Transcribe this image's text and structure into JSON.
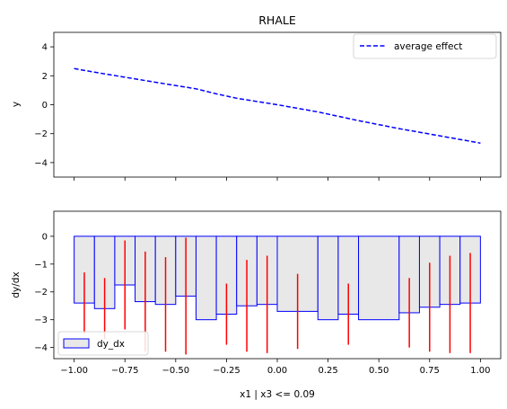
{
  "chart_data": [
    {
      "type": "line",
      "title": "RHALE",
      "xlabel": "",
      "ylabel": "y",
      "xlim": [
        -1.1,
        1.1
      ],
      "ylim": [
        -5,
        5
      ],
      "xticks": [
        -1.0,
        -0.75,
        -0.5,
        -0.25,
        0.0,
        0.25,
        0.5,
        0.75,
        1.0
      ],
      "yticks": [
        -4,
        -2,
        0,
        2,
        4
      ],
      "ytick_labels": [
        "−4",
        "−2",
        "0",
        "2",
        "4"
      ],
      "grid": false,
      "legend": {
        "position": "upper-right",
        "entries": [
          "average effect"
        ]
      },
      "series": [
        {
          "name": "average effect",
          "color": "#0000ff",
          "style": "dashed",
          "x": [
            -1.0,
            -0.9,
            -0.75,
            -0.6,
            -0.4,
            -0.3,
            -0.2,
            0.0,
            0.2,
            0.4,
            0.6,
            0.8,
            1.0
          ],
          "y": [
            2.5,
            2.25,
            1.9,
            1.55,
            1.1,
            0.75,
            0.45,
            0.0,
            -0.5,
            -1.1,
            -1.65,
            -2.15,
            -2.65
          ]
        }
      ]
    },
    {
      "type": "bar",
      "title": "",
      "xlabel": "x1 | x3 <= 0.09",
      "ylabel": "dy/dx",
      "xlim": [
        -1.1,
        1.1
      ],
      "ylim": [
        -4.4,
        0.9
      ],
      "xticks": [
        -1.0,
        -0.75,
        -0.5,
        -0.25,
        0.0,
        0.25,
        0.5,
        0.75,
        1.0
      ],
      "xtick_labels": [
        "−1.00",
        "−0.75",
        "−0.50",
        "−0.25",
        "0.00",
        "0.25",
        "0.50",
        "0.75",
        "1.00"
      ],
      "yticks": [
        0,
        -1,
        -2,
        -3,
        -4
      ],
      "ytick_labels": [
        "0",
        "−1",
        "−2",
        "−3",
        "−4"
      ],
      "grid": false,
      "legend": {
        "position": "lower-left",
        "entries": [
          "dy_dx"
        ]
      },
      "bar_fill": "#e8e8e8",
      "bar_edge": "#0000ff",
      "error_color": "#ff0000",
      "bins": [
        {
          "x0": -1.0,
          "x1": -0.9,
          "value": -2.4,
          "std": 1.1
        },
        {
          "x0": -0.9,
          "x1": -0.8,
          "value": -2.6,
          "std": 1.1
        },
        {
          "x0": -0.8,
          "x1": -0.7,
          "value": -1.75,
          "std": 1.6
        },
        {
          "x0": -0.7,
          "x1": -0.6,
          "value": -2.35,
          "std": 1.8
        },
        {
          "x0": -0.6,
          "x1": -0.5,
          "value": -2.45,
          "std": 1.7
        },
        {
          "x0": -0.5,
          "x1": -0.4,
          "value": -2.15,
          "std": 2.1
        },
        {
          "x0": -0.4,
          "x1": -0.3,
          "value": -3.0,
          "std": 0.0
        },
        {
          "x0": -0.3,
          "x1": -0.2,
          "value": -2.8,
          "std": 1.1
        },
        {
          "x0": -0.2,
          "x1": -0.1,
          "value": -2.5,
          "std": 1.65
        },
        {
          "x0": -0.1,
          "x1": 0.0,
          "value": -2.45,
          "std": 1.75
        },
        {
          "x0": 0.0,
          "x1": 0.2,
          "value": -2.7,
          "std": 1.35
        },
        {
          "x0": 0.2,
          "x1": 0.3,
          "value": -3.0,
          "std": 0.0
        },
        {
          "x0": 0.3,
          "x1": 0.4,
          "value": -2.8,
          "std": 1.1
        },
        {
          "x0": 0.4,
          "x1": 0.6,
          "value": -3.0,
          "std": 0.0
        },
        {
          "x0": 0.6,
          "x1": 0.7,
          "value": -2.75,
          "std": 1.25
        },
        {
          "x0": 0.7,
          "x1": 0.8,
          "value": -2.55,
          "std": 1.6
        },
        {
          "x0": 0.8,
          "x1": 0.9,
          "value": -2.45,
          "std": 1.75
        },
        {
          "x0": 0.9,
          "x1": 1.0,
          "value": -2.4,
          "std": 1.8
        }
      ]
    }
  ]
}
